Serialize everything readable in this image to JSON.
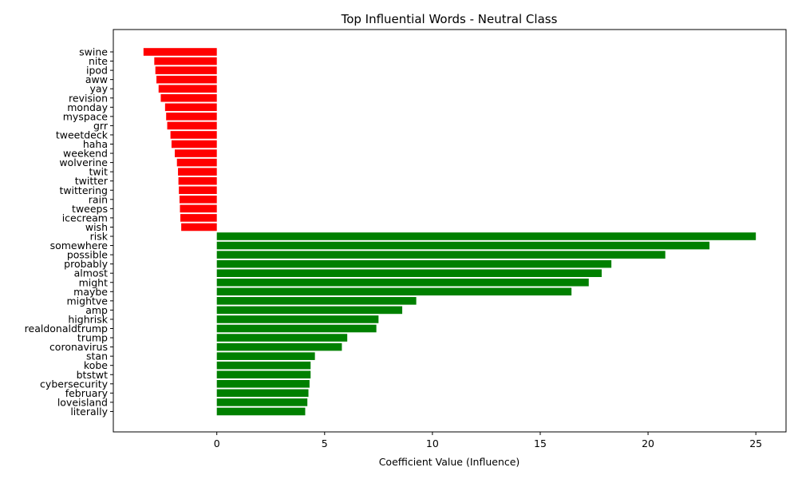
{
  "chart_data": {
    "type": "bar",
    "orientation": "horizontal",
    "title": "Top Influential Words - Neutral Class",
    "xlabel": "Coefficient Value (Influence)",
    "ylabel": "",
    "xlim": [
      -4.8,
      26.4
    ],
    "xticks": [
      0,
      5,
      10,
      15,
      20,
      25
    ],
    "grid": false,
    "legend": "none",
    "colors": {
      "negative": "#ff0000",
      "positive": "#008000"
    },
    "categories": [
      "swine",
      "nite",
      "ipod",
      "aww",
      "yay",
      "revision",
      "monday",
      "myspace",
      "grr",
      "tweetdeck",
      "haha",
      "weekend",
      "wolverine",
      "twit",
      "twitter",
      "twittering",
      "rain",
      "tweeps",
      "icecream",
      "wish",
      "risk",
      "somewhere",
      "possible",
      "probably",
      "almost",
      "might",
      "maybe",
      "mightve",
      "amp",
      "highrisk",
      "realdonaldtrump",
      "trump",
      "coronavirus",
      "stan",
      "kobe",
      "btstwt",
      "cybersecurity",
      "february",
      "loveisland",
      "literally"
    ],
    "values": [
      -3.4,
      -2.9,
      -2.85,
      -2.8,
      -2.7,
      -2.6,
      -2.4,
      -2.35,
      -2.3,
      -2.15,
      -2.1,
      -1.95,
      -1.85,
      -1.8,
      -1.78,
      -1.76,
      -1.73,
      -1.71,
      -1.69,
      -1.65,
      25.0,
      22.85,
      20.8,
      18.3,
      17.85,
      17.25,
      16.45,
      9.25,
      8.6,
      7.5,
      7.4,
      6.05,
      5.8,
      4.55,
      4.35,
      4.35,
      4.3,
      4.25,
      4.2,
      4.1
    ]
  }
}
